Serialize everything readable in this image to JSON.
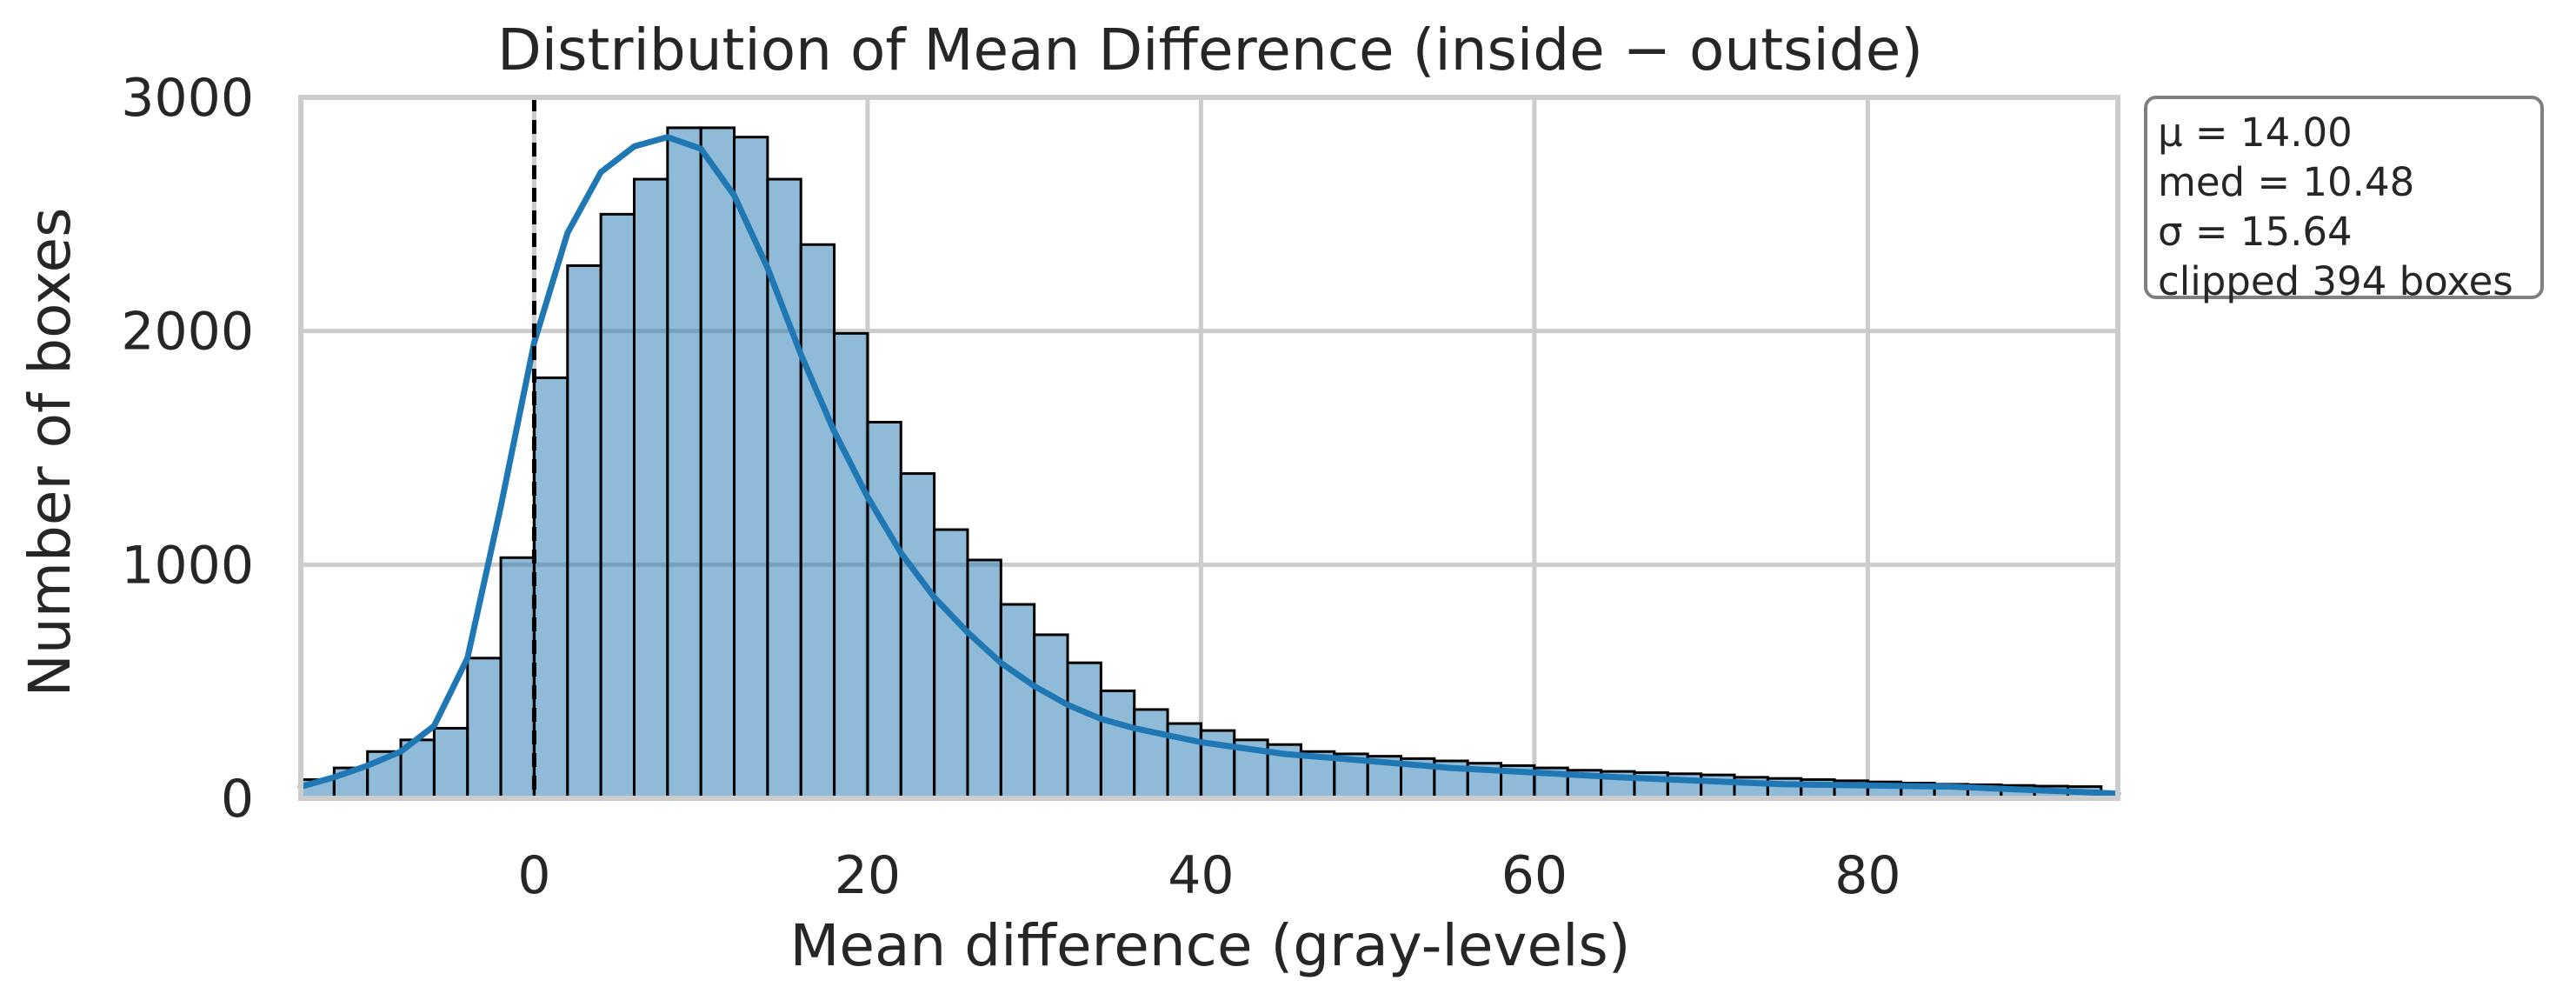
{
  "chart_data": {
    "type": "bar",
    "subtype": "histogram-with-kde",
    "title": "Distribution of Mean Difference (inside − outside)",
    "xlabel": "Mean difference (gray-levels)",
    "ylabel": "Number of boxes",
    "xlim": [
      -14,
      95
    ],
    "ylim": [
      0,
      3000
    ],
    "xticks": [
      0,
      20,
      40,
      60,
      80
    ],
    "yticks": [
      0,
      1000,
      2000,
      3000
    ],
    "grid": true,
    "bin_start": -14,
    "bin_width": 2,
    "counts": [
      80,
      130,
      200,
      250,
      300,
      600,
      1030,
      1800,
      2280,
      2500,
      2650,
      2870,
      2870,
      2830,
      2650,
      2370,
      1990,
      1610,
      1390,
      1150,
      1020,
      830,
      700,
      580,
      460,
      380,
      320,
      290,
      250,
      230,
      200,
      190,
      180,
      170,
      160,
      150,
      140,
      130,
      120,
      115,
      110,
      105,
      100,
      90,
      85,
      80,
      75,
      70,
      65,
      60,
      58,
      55,
      52,
      50
    ],
    "kde": {
      "x": [
        -14,
        -12,
        -10,
        -8,
        -6,
        -4,
        -2,
        0,
        2,
        4,
        6,
        8,
        10,
        12,
        14,
        16,
        18,
        20,
        22,
        24,
        26,
        28,
        30,
        32,
        34,
        36,
        38,
        40,
        45,
        50,
        55,
        60,
        65,
        70,
        75,
        80,
        85,
        90,
        95
      ],
      "y": [
        50,
        90,
        140,
        200,
        310,
        600,
        1250,
        1950,
        2420,
        2680,
        2790,
        2830,
        2780,
        2580,
        2270,
        1900,
        1570,
        1290,
        1050,
        860,
        710,
        580,
        480,
        400,
        340,
        300,
        270,
        240,
        190,
        160,
        130,
        110,
        90,
        75,
        60,
        55,
        50,
        35,
        20
      ]
    },
    "vline_x": 0,
    "bar_color": "#1f77b4",
    "bar_opacity": 0.5,
    "line_color": "#1f77b4",
    "stats": {
      "mean": "μ = 14.00",
      "median": "med = 10.48",
      "sigma": "σ = 15.64",
      "clipped": "clipped 394 boxes"
    }
  }
}
